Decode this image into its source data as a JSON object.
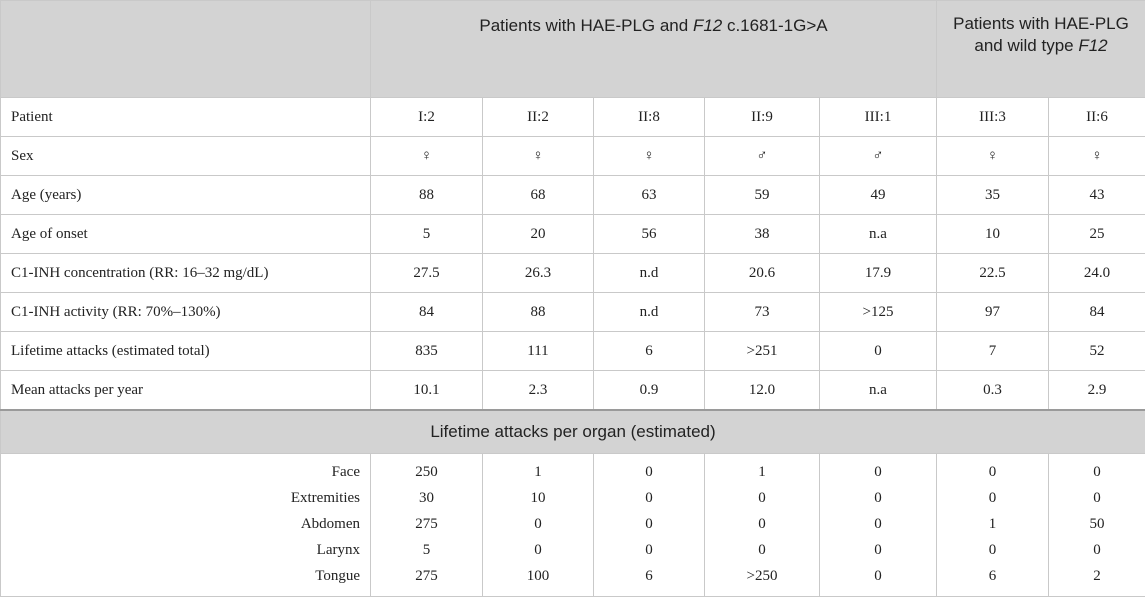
{
  "header": {
    "group1_prefix": "Patients with HAE-PLG and ",
    "group1_gene": "F12",
    "group1_variant": " c.1681-1G>A",
    "group2_text": "Patients with HAE-PLG and wild type ",
    "group2_gene": "F12"
  },
  "rows": [
    {
      "label": "Patient",
      "values": [
        "I:2",
        "II:2",
        "II:8",
        "II:9",
        "III:1",
        "III:3",
        "II:6"
      ]
    },
    {
      "label": "Sex",
      "values": [
        "♀",
        "♀",
        "♀",
        "♂",
        "♂",
        "♀",
        "♀"
      ]
    },
    {
      "label": "Age (years)",
      "values": [
        "88",
        "68",
        "63",
        "59",
        "49",
        "35",
        "43"
      ]
    },
    {
      "label": "Age of onset",
      "values": [
        "5",
        "20",
        "56",
        "38",
        "n.a",
        "10",
        "25"
      ]
    },
    {
      "label": "C1-INH concentration (RR: 16–32 mg/dL)",
      "values": [
        "27.5",
        "26.3",
        "n.d",
        "20.6",
        "17.9",
        "22.5",
        "24.0"
      ]
    },
    {
      "label": "C1-INH activity (RR: 70%–130%)",
      "values": [
        "84",
        "88",
        "n.d",
        "73",
        ">125",
        "97",
        "84"
      ]
    },
    {
      "label": "Lifetime attacks (estimated total)",
      "values": [
        "835",
        "111",
        "6",
        ">251",
        "0",
        "7",
        "52"
      ]
    },
    {
      "label": "Mean attacks per year",
      "values": [
        "10.1",
        "2.3",
        "0.9",
        "12.0",
        "n.a",
        "0.3",
        "2.9"
      ]
    }
  ],
  "section_title": "Lifetime attacks per organ (estimated)",
  "organs": {
    "labels": [
      "Face",
      "Extremities",
      "Abdomen",
      "Larynx",
      "Tongue"
    ],
    "columns": [
      [
        "250",
        "30",
        "275",
        "5",
        "275"
      ],
      [
        "1",
        "10",
        "0",
        "0",
        "100"
      ],
      [
        "0",
        "0",
        "0",
        "0",
        "6"
      ],
      [
        "1",
        "0",
        "0",
        "0",
        ">250"
      ],
      [
        "0",
        "0",
        "0",
        "0",
        "0"
      ],
      [
        "0",
        "0",
        "1",
        "0",
        "6"
      ],
      [
        "0",
        "0",
        "50",
        "0",
        "2"
      ]
    ]
  }
}
